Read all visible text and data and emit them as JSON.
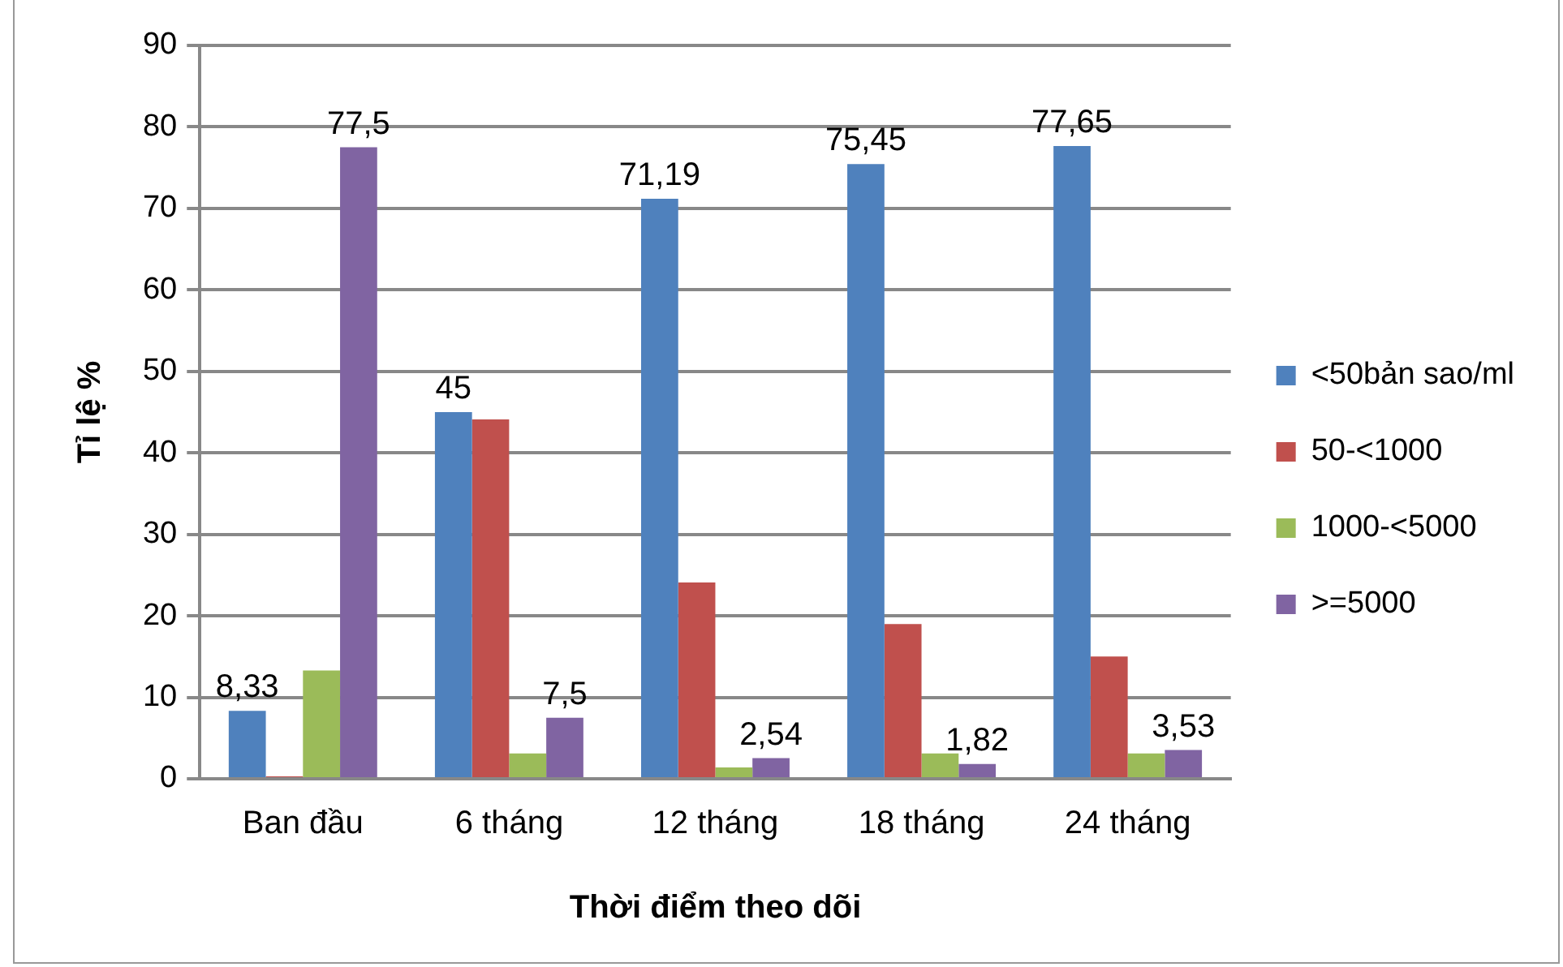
{
  "chart_data": {
    "type": "bar",
    "xlabel": "Thời điểm theo dõi",
    "ylabel": "Tỉ lệ %",
    "categories": [
      "Ban đầu",
      "6 tháng",
      "12 tháng",
      "18 tháng",
      "24 tháng"
    ],
    "series": [
      {
        "name": "<50bản sao/ml",
        "color": "#4f81bd",
        "values": [
          8.33,
          45,
          71.19,
          75.45,
          77.65
        ],
        "value_labels": [
          "8,33",
          "45",
          "71,19",
          "75,45",
          "77,65"
        ]
      },
      {
        "name": "50-<1000",
        "color": "#c0504d",
        "values": [
          0.3,
          44.1,
          24.1,
          19.0,
          15.0
        ]
      },
      {
        "name": "1000-<5000",
        "color": "#9bbb59",
        "values": [
          13.3,
          3.1,
          1.4,
          3.1,
          3.1
        ]
      },
      {
        "name": ">=5000",
        "color": "#8064a2",
        "values": [
          77.5,
          7.5,
          2.54,
          1.82,
          3.53
        ],
        "value_labels": [
          "77,5",
          "7,5",
          "2,54",
          "1,82",
          "3,53"
        ]
      }
    ],
    "ylim": [
      0,
      90
    ],
    "yticks": [
      0,
      10,
      20,
      30,
      40,
      50,
      60,
      70,
      80,
      90
    ],
    "grid": "y",
    "legend": "right"
  }
}
